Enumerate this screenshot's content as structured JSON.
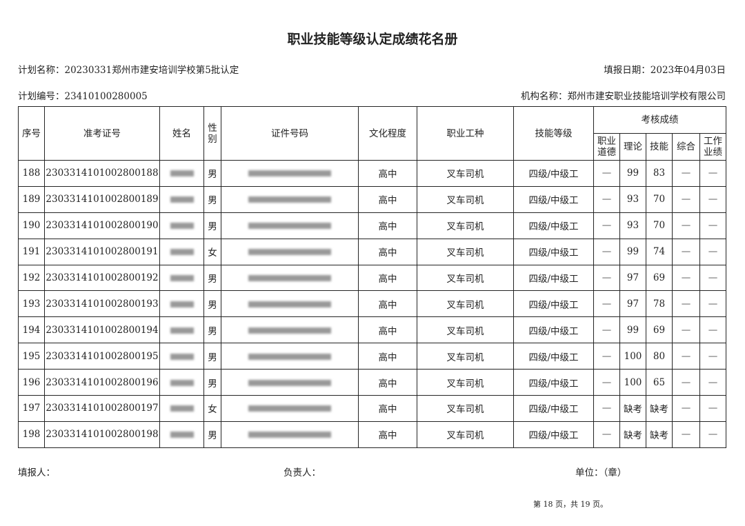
{
  "title": "职业技能等级认定成绩花名册",
  "plan_name": "计划名称：20230331郑州市建安培训学校第5批认定",
  "report_date": "填报日期：2023年04月03日",
  "plan_number": "计划编号：23410100280005",
  "org_name": "机构名称：郑州市建安职业技能培训学校有限公司",
  "headers": {
    "seq": "序号",
    "ticket": "准考证号",
    "name": "姓名",
    "gender": "性别",
    "id_number": "证件号码",
    "education": "文化程度",
    "occupation": "职业工种",
    "skill_level": "技能等级",
    "scores": "考核成绩",
    "ethics": "职业道德",
    "theory": "理论",
    "skill": "技能",
    "comprehensive": "综合",
    "performance": "工作业绩"
  },
  "rows": [
    {
      "seq": "188",
      "ticket": "2303314101002800188",
      "gender": "男",
      "education": "高中",
      "occupation": "叉车司机",
      "level": "四级/中级工",
      "ethics": "—",
      "theory": "99",
      "skill": "83",
      "comprehensive": "—",
      "performance": "—"
    },
    {
      "seq": "189",
      "ticket": "2303314101002800189",
      "gender": "男",
      "education": "高中",
      "occupation": "叉车司机",
      "level": "四级/中级工",
      "ethics": "—",
      "theory": "93",
      "skill": "70",
      "comprehensive": "—",
      "performance": "—"
    },
    {
      "seq": "190",
      "ticket": "2303314101002800190",
      "gender": "男",
      "education": "高中",
      "occupation": "叉车司机",
      "level": "四级/中级工",
      "ethics": "—",
      "theory": "93",
      "skill": "70",
      "comprehensive": "—",
      "performance": "—"
    },
    {
      "seq": "191",
      "ticket": "2303314101002800191",
      "gender": "女",
      "education": "高中",
      "occupation": "叉车司机",
      "level": "四级/中级工",
      "ethics": "—",
      "theory": "99",
      "skill": "74",
      "comprehensive": "—",
      "performance": "—"
    },
    {
      "seq": "192",
      "ticket": "2303314101002800192",
      "gender": "男",
      "education": "高中",
      "occupation": "叉车司机",
      "level": "四级/中级工",
      "ethics": "—",
      "theory": "97",
      "skill": "69",
      "comprehensive": "—",
      "performance": "—"
    },
    {
      "seq": "193",
      "ticket": "2303314101002800193",
      "gender": "男",
      "education": "高中",
      "occupation": "叉车司机",
      "level": "四级/中级工",
      "ethics": "—",
      "theory": "97",
      "skill": "78",
      "comprehensive": "—",
      "performance": "—"
    },
    {
      "seq": "194",
      "ticket": "2303314101002800194",
      "gender": "男",
      "education": "高中",
      "occupation": "叉车司机",
      "level": "四级/中级工",
      "ethics": "—",
      "theory": "99",
      "skill": "69",
      "comprehensive": "—",
      "performance": "—"
    },
    {
      "seq": "195",
      "ticket": "2303314101002800195",
      "gender": "男",
      "education": "高中",
      "occupation": "叉车司机",
      "level": "四级/中级工",
      "ethics": "—",
      "theory": "100",
      "skill": "80",
      "comprehensive": "—",
      "performance": "—"
    },
    {
      "seq": "196",
      "ticket": "2303314101002800196",
      "gender": "男",
      "education": "高中",
      "occupation": "叉车司机",
      "level": "四级/中级工",
      "ethics": "—",
      "theory": "100",
      "skill": "65",
      "comprehensive": "—",
      "performance": "—"
    },
    {
      "seq": "197",
      "ticket": "2303314101002800197",
      "gender": "女",
      "education": "高中",
      "occupation": "叉车司机",
      "level": "四级/中级工",
      "ethics": "—",
      "theory": "缺考",
      "skill": "缺考",
      "comprehensive": "—",
      "performance": "—"
    },
    {
      "seq": "198",
      "ticket": "2303314101002800198",
      "gender": "男",
      "education": "高中",
      "occupation": "叉车司机",
      "level": "四级/中级工",
      "ethics": "—",
      "theory": "缺考",
      "skill": "缺考",
      "comprehensive": "—",
      "performance": "—"
    }
  ],
  "footer": {
    "filler": "填报人：",
    "responsible": "负责人：",
    "unit": "单位：（章）",
    "page": "第 18 页，共 19 页。"
  }
}
